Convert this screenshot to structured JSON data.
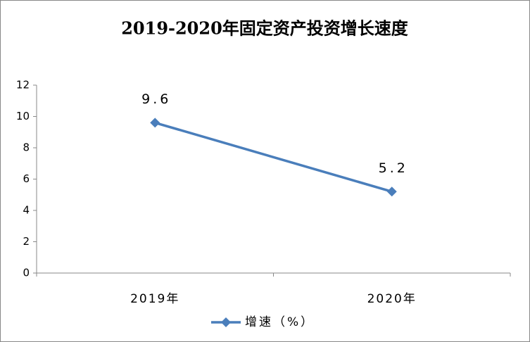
{
  "chart_data": {
    "type": "line",
    "title": "2019-2020年固定资产投资增长速度",
    "categories": [
      "2019年",
      "2020年"
    ],
    "series": [
      {
        "name": "增速（%）",
        "color": "#4a7ebb",
        "values": [
          9.6,
          5.2
        ]
      }
    ],
    "ylim": [
      0,
      12
    ],
    "yticks": [
      0,
      2,
      4,
      6,
      8,
      10,
      12
    ],
    "grid": false,
    "legend": "bottom"
  }
}
